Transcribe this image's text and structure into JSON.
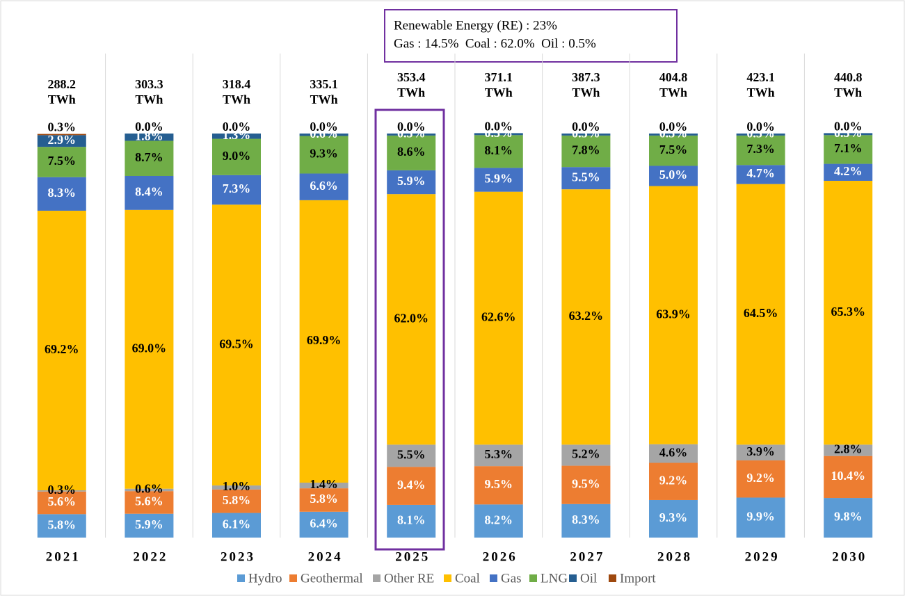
{
  "chart_data": {
    "type": "stacked_bar",
    "categories": [
      "2021",
      "2022",
      "2023",
      "2024",
      "2025",
      "2026",
      "2027",
      "2028",
      "2029",
      "2030"
    ],
    "ylim": [
      0,
      100
    ],
    "series": [
      {
        "name": "Hydro",
        "color": "#5b9bd5",
        "label_color": "#ffffff",
        "values": [
          5.8,
          5.9,
          6.1,
          6.4,
          8.1,
          8.2,
          8.3,
          9.3,
          9.9,
          9.8
        ],
        "value_labels": [
          "5.8%",
          "5.9%",
          "6.1%",
          "6.4%",
          "8.1%",
          "8.2%",
          "8.3%",
          "9.3%",
          "9.9%",
          "9.8%"
        ]
      },
      {
        "name": "Geothermal",
        "color": "#ed7d31",
        "label_color": "#ffffff",
        "values": [
          5.6,
          5.6,
          5.8,
          5.8,
          9.4,
          9.5,
          9.5,
          9.2,
          9.2,
          10.4
        ],
        "value_labels": [
          "5.6%",
          "5.6%",
          "5.8%",
          "5.8%",
          "9.4%",
          "9.5%",
          "9.5%",
          "9.2%",
          "9.2%",
          "10.4%"
        ]
      },
      {
        "name": "Other RE",
        "color": "#a5a5a5",
        "label_color": "#000000",
        "values": [
          0.3,
          0.6,
          1.0,
          1.4,
          5.5,
          5.3,
          5.2,
          4.6,
          3.9,
          2.8
        ],
        "value_labels": [
          "0.3%",
          "0.6%",
          "1.0%",
          "1.4%",
          "5.5%",
          "5.3%",
          "5.2%",
          "4.6%",
          "3.9%",
          "2.8%"
        ]
      },
      {
        "name": "Coal",
        "color": "#ffc000",
        "label_color": "#000000",
        "values": [
          69.2,
          69.0,
          69.5,
          69.9,
          62.0,
          62.6,
          63.2,
          63.9,
          64.5,
          65.3
        ],
        "value_labels": [
          "69.2%",
          "69.0%",
          "69.5%",
          "69.9%",
          "62.0%",
          "62.6%",
          "63.2%",
          "63.9%",
          "64.5%",
          "65.3%"
        ]
      },
      {
        "name": "Gas",
        "color": "#4472c4",
        "label_color": "#ffffff",
        "values": [
          8.3,
          8.4,
          7.3,
          6.6,
          5.9,
          5.9,
          5.5,
          5.0,
          4.7,
          4.2
        ],
        "value_labels": [
          "8.3%",
          "8.4%",
          "7.3%",
          "6.6%",
          "5.9%",
          "5.9%",
          "5.5%",
          "5.0%",
          "4.7%",
          "4.2%"
        ]
      },
      {
        "name": "LNG",
        "color": "#70ad47",
        "label_color": "#000000",
        "values": [
          7.5,
          8.7,
          9.0,
          9.3,
          8.6,
          8.1,
          7.8,
          7.5,
          7.3,
          7.1
        ],
        "value_labels": [
          "7.5%",
          "8.7%",
          "9.0%",
          "9.3%",
          "8.6%",
          "8.1%",
          "7.8%",
          "7.5%",
          "7.3%",
          "7.1%"
        ]
      },
      {
        "name": "Oil",
        "color": "#255e91",
        "label_color": "#ffffff",
        "values": [
          2.9,
          1.8,
          1.3,
          0.6,
          0.5,
          0.5,
          0.5,
          0.5,
          0.5,
          0.5
        ],
        "value_labels": [
          "2.9%",
          "1.8%",
          "1.3%",
          "0.6%",
          "0.5%",
          "0.5%",
          "0.5%",
          "0.5%",
          "0.5%",
          "0.5%"
        ]
      },
      {
        "name": "Import",
        "color": "#9e480e",
        "label_color": "#000000",
        "values": [
          0.3,
          0.0,
          0.0,
          0.0,
          0.0,
          0.0,
          0.0,
          0.0,
          0.0,
          0.0
        ],
        "value_labels": [
          "0.3%",
          "0.0%",
          "0.0%",
          "0.0%",
          "0.0%",
          "0.0%",
          "0.0%",
          "0.0%",
          "0.0%",
          "0.0%"
        ]
      }
    ],
    "total_labels": [
      "288.2 TWh",
      "303.3 TWh",
      "318.4 TWh",
      "335.1 TWh",
      "353.4 TWh",
      "371.1 TWh",
      "387.3 TWh",
      "404.8 TWh",
      "423.1 TWh",
      "440.8 TWh"
    ],
    "annotations": [
      "Renewable Energy (RE) : 23%",
      "Gas : 14.5%  Coal : 62.0%  Oil : 0.5%"
    ]
  }
}
